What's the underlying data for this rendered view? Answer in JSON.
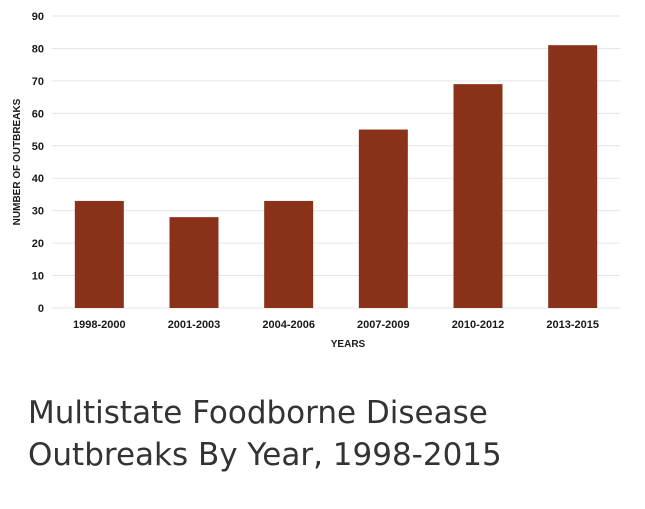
{
  "chart_data": {
    "type": "bar",
    "categories": [
      "1998-2000",
      "2001-2003",
      "2004-2006",
      "2007-2009",
      "2010-2012",
      "2013-2015"
    ],
    "values": [
      33,
      28,
      33,
      55,
      69,
      81
    ],
    "xlabel": "YEARS",
    "ylabel": "NUMBER OF OUTBREAKS",
    "ylim": [
      0,
      90
    ],
    "yticks": [
      0,
      10,
      20,
      30,
      40,
      50,
      60,
      70,
      80,
      90
    ],
    "grid": true,
    "bar_color": "#8a3219",
    "grid_color": "#e6e6e6"
  },
  "caption": {
    "line1": "Multistate Foodborne Disease",
    "line2": "Outbreaks By Year, 1998-2015"
  }
}
